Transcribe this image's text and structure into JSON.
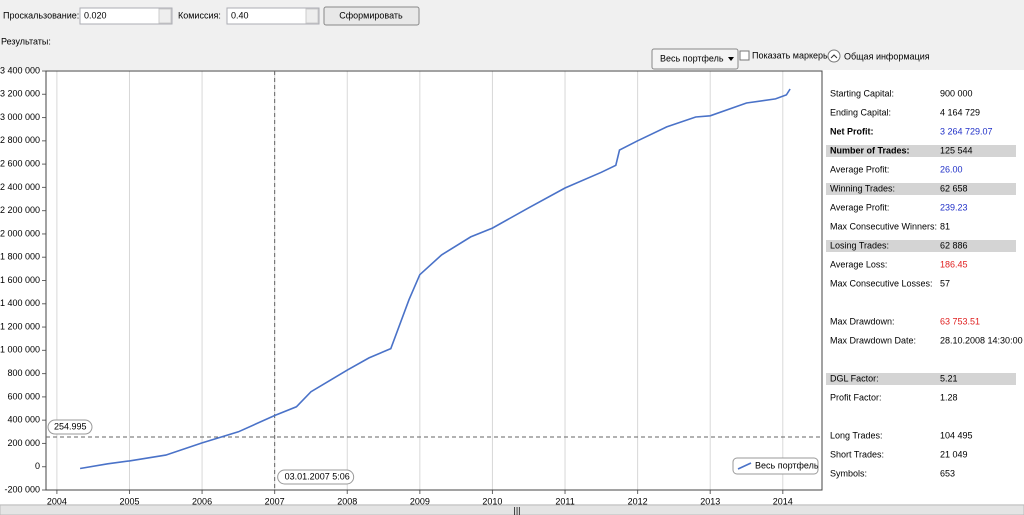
{
  "toolbar": {
    "slippage_label": "Проскальзование:",
    "slippage_value": "0.020",
    "commission_label": "Комиссия:",
    "commission_value": "0.40",
    "build_button": "Сформировать"
  },
  "results_label": "Результаты:",
  "chart_controls": {
    "portfolio_select": "Весь портфель",
    "show_markers": "Показать маркеры",
    "info_toggle": "Общая информация"
  },
  "chart_data": {
    "type": "line",
    "x": [
      2004.32,
      2004.7,
      2005,
      2005.5,
      2006,
      2006.5,
      2007,
      2007.3,
      2007.5,
      2008,
      2008.3,
      2008.6,
      2008.85,
      2009,
      2009.3,
      2009.7,
      2010,
      2010.5,
      2011,
      2011.5,
      2011.7,
      2011.75,
      2012,
      2012.4,
      2012.8,
      2013,
      2013.5,
      2013.9,
      2014.05,
      2014.1
    ],
    "series": [
      {
        "name": "Весь портфель",
        "color": "#4a72c8",
        "values": [
          -15000,
          25000,
          50000,
          100000,
          205000,
          300000,
          440000,
          515000,
          645000,
          830000,
          935000,
          1015000,
          1435000,
          1650000,
          1820000,
          1975000,
          2050000,
          2225000,
          2395000,
          2530000,
          2590000,
          2720000,
          2800000,
          2920000,
          3005000,
          3015000,
          3125000,
          3160000,
          3195000,
          3245000
        ]
      }
    ],
    "xlim": [
      2003.85,
      2014.54
    ],
    "xticks": [
      2004,
      2005,
      2006,
      2007,
      2008,
      2009,
      2010,
      2011,
      2012,
      2013,
      2014
    ],
    "ylim": [
      -200000,
      3400000
    ],
    "yticks": [
      {
        "value": -200000,
        "label": "-200 000"
      },
      0,
      {
        "value": 200000,
        "label": "200 000"
      },
      {
        "value": 400000,
        "label": "400 000"
      },
      {
        "value": 600000,
        "label": "600 000"
      },
      {
        "value": 800000,
        "label": "800 000"
      },
      {
        "value": 1000000,
        "label": "1 000 000"
      },
      {
        "value": 1200000,
        "label": "1 200 000"
      },
      {
        "value": 1400000,
        "label": "1 400 000"
      },
      {
        "value": 1600000,
        "label": "1 600 000"
      },
      {
        "value": 1800000,
        "label": "1 800 000"
      },
      {
        "value": 2000000,
        "label": "2 000 000"
      },
      {
        "value": 2200000,
        "label": "2 200 000"
      },
      {
        "value": 2400000,
        "label": "2 400 000"
      },
      {
        "value": 2600000,
        "label": "2 600 000"
      },
      {
        "value": 2800000,
        "label": "2 800 000"
      },
      {
        "value": 3000000,
        "label": "3 000 000"
      },
      {
        "value": 3200000,
        "label": "3 200 000"
      },
      {
        "value": 3400000,
        "label": "3 400 000"
      }
    ],
    "grid": "x",
    "legend": "lower right",
    "crosshair": {
      "x": 2007,
      "y": 254995,
      "x_label": "03.01.2007 5:06",
      "y_label": "254.995"
    }
  },
  "stats": [
    [
      {
        "label": "Starting Capital:",
        "value": "900 000"
      },
      {
        "label": "Ending Capital:",
        "value": "4 164 729"
      },
      {
        "label": "Net Profit:",
        "value": "3 264 729.07",
        "color": "#2030c8",
        "bold": true
      },
      {
        "label": "Number of Trades:",
        "value": "125 544",
        "bold": true,
        "highlight": true
      },
      {
        "label": "Average Profit:",
        "value": "26.00",
        "color": "#2030c8"
      },
      {
        "label": "Winning Trades:",
        "value": "62 658",
        "highlight": true
      },
      {
        "label": "Average Profit:",
        "value": "239.23",
        "color": "#2030c8"
      },
      {
        "label": "Max Consecutive Winners:",
        "value": "81"
      },
      {
        "label": "Losing Trades:",
        "value": "62 886",
        "highlight": true
      },
      {
        "label": "Average Loss:",
        "value": "186.45",
        "color": "#e02020"
      },
      {
        "label": "Max Consecutive Losses:",
        "value": "57"
      }
    ],
    [
      {
        "label": "Max Drawdown:",
        "value": "63 753.51",
        "color": "#e02020"
      },
      {
        "label": "Max Drawdown Date:",
        "value": "28.10.2008 14:30:00"
      }
    ],
    [
      {
        "label": "DGL Factor:",
        "value": "5.21",
        "highlight": true
      },
      {
        "label": "Profit Factor:",
        "value": "1.28"
      }
    ],
    [
      {
        "label": "Long Trades:",
        "value": "104 495"
      },
      {
        "label": "Short Trades:",
        "value": "21 049"
      },
      {
        "label": "Symbols:",
        "value": "653"
      }
    ]
  ]
}
